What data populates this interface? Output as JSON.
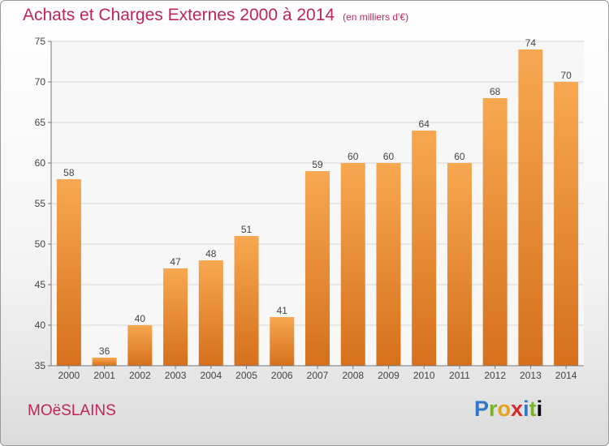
{
  "title": "Achats et Charges Externes 2000 à 2014",
  "unit_note": "(en milliers d'€)",
  "commune": "MOëSLAINS",
  "logo_text": "Proxiti",
  "colors": {
    "bar_top": "#f7a850",
    "bar_bottom": "#d6701c",
    "title": "#c0245a"
  },
  "chart_data": {
    "type": "bar",
    "title": "Achats et Charges Externes 2000 à 2014",
    "categories": [
      "2000",
      "2001",
      "2002",
      "2003",
      "2004",
      "2005",
      "2006",
      "2007",
      "2008",
      "2009",
      "2010",
      "2011",
      "2012",
      "2013",
      "2014"
    ],
    "values": [
      58,
      36,
      40,
      47,
      48,
      51,
      41,
      59,
      60,
      60,
      64,
      60,
      68,
      74,
      70
    ],
    "ylim": [
      35,
      75
    ],
    "yticks": [
      35,
      40,
      45,
      50,
      55,
      60,
      65,
      70,
      75
    ],
    "grid": true,
    "xlabel": "",
    "ylabel": ""
  }
}
